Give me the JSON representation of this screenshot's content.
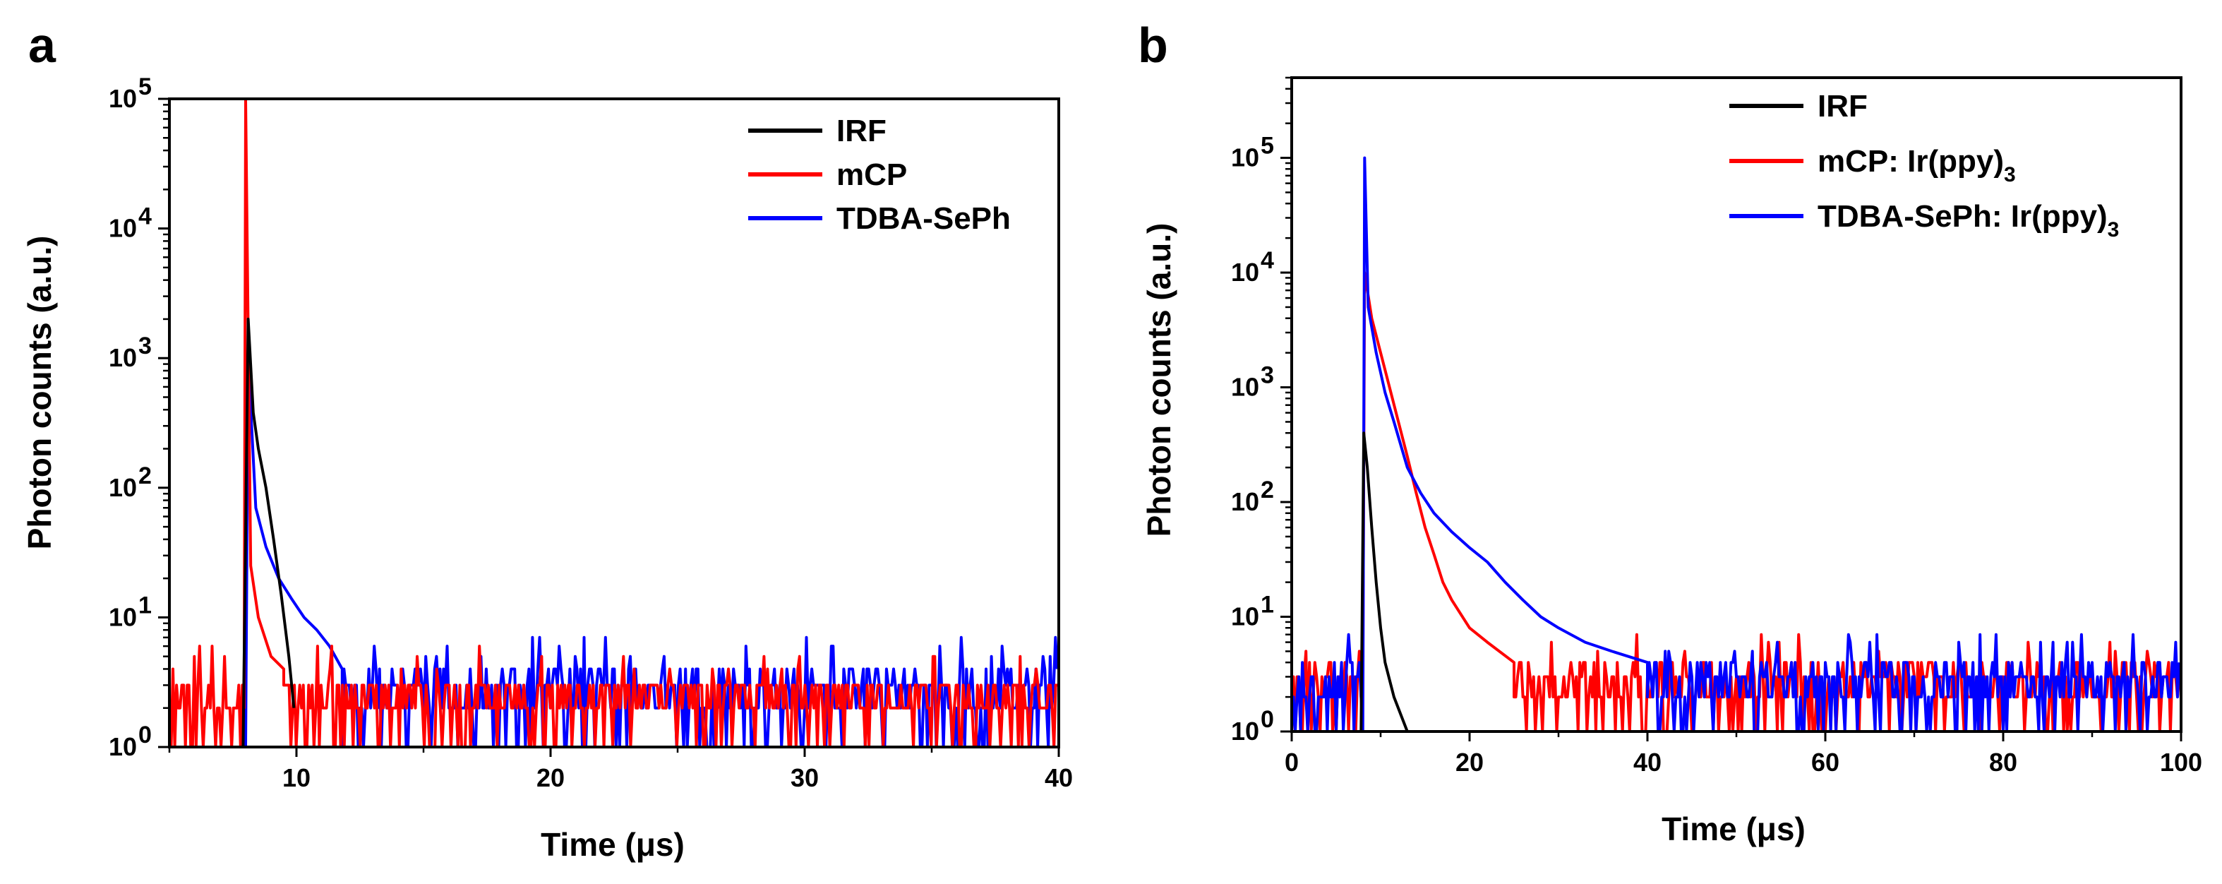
{
  "chart_data": [
    {
      "panel": "a",
      "type": "line",
      "xlabel": "Time (μs)",
      "ylabel": "Photon counts (a.u.)",
      "xlim": [
        5,
        40
      ],
      "ylim": [
        1,
        100000
      ],
      "yscale": "log",
      "xticks": [
        10,
        20,
        30,
        40
      ],
      "yticks": [
        {
          "base": "10",
          "exp": "0"
        },
        {
          "base": "10",
          "exp": "1"
        },
        {
          "base": "10",
          "exp": "2"
        },
        {
          "base": "10",
          "exp": "3"
        },
        {
          "base": "10",
          "exp": "4"
        },
        {
          "base": "10",
          "exp": "5"
        }
      ],
      "legend_position": "top-right",
      "series": [
        {
          "name": "IRF",
          "color": "#000000",
          "x": [
            7.9,
            8.1,
            8.3,
            8.5,
            8.8,
            9.1,
            9.4,
            9.7,
            9.9
          ],
          "y": [
            1,
            2000,
            380,
            200,
            100,
            40,
            15,
            5,
            2
          ]
        },
        {
          "name": "mCP",
          "color": "#ff0000",
          "x": [
            8.0,
            8.2,
            8.5,
            9.0,
            9.5
          ],
          "y": [
            100000,
            25,
            10,
            5,
            4
          ],
          "noise": {
            "from": 5.0,
            "to": 40.0,
            "level": 2.5
          }
        },
        {
          "name": "TDBA-SePh",
          "color": "#0000ff",
          "x": [
            8.0,
            8.1,
            8.4,
            8.8,
            9.3,
            9.8,
            10.3,
            10.8,
            11.3,
            11.8
          ],
          "y": [
            1,
            1000,
            70,
            35,
            20,
            14,
            10,
            8,
            6,
            4
          ],
          "noise": {
            "from": 8.5,
            "to": 40.0,
            "level": 3
          }
        }
      ]
    },
    {
      "panel": "b",
      "type": "line",
      "xlabel": "Time (μs)",
      "ylabel": "Photon counts (a.u.)",
      "xlim": [
        0,
        100
      ],
      "ylim": [
        1,
        500000
      ],
      "yscale": "log",
      "xticks": [
        0,
        20,
        40,
        60,
        80,
        100
      ],
      "yticks": [
        {
          "base": "10",
          "exp": "0"
        },
        {
          "base": "10",
          "exp": "1"
        },
        {
          "base": "10",
          "exp": "2"
        },
        {
          "base": "10",
          "exp": "3"
        },
        {
          "base": "10",
          "exp": "4"
        },
        {
          "base": "10",
          "exp": "5"
        }
      ],
      "legend_position": "top-right",
      "series": [
        {
          "name": "IRF",
          "color": "#000000",
          "x": [
            7.8,
            8.1,
            8.5,
            9.0,
            9.5,
            10.0,
            10.5,
            11.5,
            13.0
          ],
          "y": [
            1,
            400,
            200,
            60,
            20,
            8,
            4,
            2,
            1
          ]
        },
        {
          "name": "mCP: Ir(ppy)",
          "sub": "3",
          "color": "#ff0000",
          "x": [
            8.2,
            9.0,
            10.0,
            11.0,
            12.0,
            13.0,
            14.0,
            15.0,
            16.0,
            17.0,
            18.0,
            20.0,
            22.0,
            25.0
          ],
          "y": [
            10000,
            4000,
            2000,
            1000,
            500,
            250,
            120,
            60,
            35,
            20,
            14,
            8,
            6,
            4
          ],
          "noise": {
            "from": 0.0,
            "to": 100.0,
            "level": 3
          }
        },
        {
          "name": "TDBA-SePh: Ir(ppy)",
          "sub": "3",
          "color": "#0000ff",
          "x": [
            8.0,
            8.2,
            8.6,
            9.5,
            10.5,
            11.5,
            13.0,
            14.5,
            16.0,
            18.0,
            20.0,
            22.0,
            24.0,
            26.0,
            28.0,
            30.0,
            33.0,
            36.0,
            40.0
          ],
          "y": [
            1,
            100000,
            5000,
            2000,
            900,
            500,
            200,
            120,
            80,
            55,
            40,
            30,
            20,
            14,
            10,
            8,
            6,
            5,
            4
          ],
          "noise": {
            "from": 0.0,
            "to": 100.0,
            "level": 3
          }
        }
      ]
    }
  ],
  "panels": {
    "a": {
      "letter": "a"
    },
    "b": {
      "letter": "b"
    }
  }
}
